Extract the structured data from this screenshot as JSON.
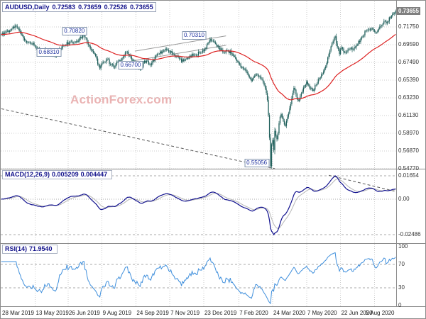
{
  "header": {
    "symbol": "AUDUSD,Daily",
    "open": "0.72583",
    "high": "0.73659",
    "low": "0.72526",
    "close": "0.73655"
  },
  "watermark": "ActionForex.com",
  "main_panel": {
    "axis_labels": [
      "0.71750",
      "0.69590",
      "0.67490",
      "0.65390",
      "0.63230",
      "0.61130",
      "0.58970",
      "0.56870",
      "0.54770"
    ],
    "current_price_label": "0.73655"
  },
  "macd_panel": {
    "label": "MACD(12,26,9)",
    "value_macd": "0.005209",
    "value_signal": "0.004447",
    "axis_labels": [
      "0.01654",
      "0.00",
      "-0.02486"
    ]
  },
  "rsi_panel": {
    "label": "RSI(14)",
    "value": "71.9540",
    "axis_labels": [
      "100",
      "70",
      "30",
      "0"
    ]
  },
  "x_axis": {
    "labels": [
      "28 Mar 2019",
      "13 May 2019",
      "26 Jun 2019",
      "9 Aug 2019",
      "24 Sep 2019",
      "7 Nov 2019",
      "23 Dec 2019",
      "7 Feb 2020",
      "24 Mar 2020",
      "7 May 2020",
      "22 Jun 2020",
      "5 Aug 2020"
    ]
  },
  "colors": {
    "grid": "#cccccc",
    "panel_border": "#8c8c8c",
    "candle": "#1f5f5b",
    "ma_line": "#dd2222",
    "macd_line": "#10108e",
    "macd_signal": "#b6b6b6",
    "rsi_line": "#3f8fdc",
    "label_text": "#14148c",
    "axis_text": "#333333",
    "watermark": "#de8484",
    "annotation_text": "#1c2f9e",
    "annotation_border": "#8193ad",
    "current_price_bg": "#7f7f7f"
  },
  "chart_data": {
    "type": "candlestick",
    "symbol": "AUDUSD",
    "timeframe": "Daily",
    "title": "AUDUSD,Daily",
    "last_ohlc": {
      "open": 0.72583,
      "high": 0.73659,
      "low": 0.72526,
      "close": 0.73655
    },
    "bars_total": 373,
    "price_axis_values": [
      0.7175,
      0.6959,
      0.6749,
      0.6539,
      0.6323,
      0.6113,
      0.5897,
      0.5687,
      0.5477
    ],
    "x_tick_bars": [
      0,
      32,
      63,
      95,
      127,
      159,
      191,
      224,
      256,
      288,
      320,
      352
    ],
    "x_tick_labels": [
      "28 Mar 2019",
      "13 May 2019",
      "26 Jun 2019",
      "9 Aug 2019",
      "24 Sep 2019",
      "7 Nov 2019",
      "23 Dec 2019",
      "7 Feb 2020",
      "24 Mar 2020",
      "7 May 2020",
      "22 Jun 2020",
      "5 Aug 2020"
    ],
    "close_anchors": [
      [
        0,
        0.7085
      ],
      [
        5,
        0.712
      ],
      [
        10,
        0.715
      ],
      [
        13,
        0.719
      ],
      [
        16,
        0.7155
      ],
      [
        19,
        0.708
      ],
      [
        22,
        0.7015
      ],
      [
        27,
        0.699
      ],
      [
        32,
        0.694
      ],
      [
        38,
        0.687
      ],
      [
        44,
        0.6905
      ],
      [
        48,
        0.686
      ],
      [
        52,
        0.6832
      ],
      [
        58,
        0.695
      ],
      [
        65,
        0.7
      ],
      [
        70,
        0.699
      ],
      [
        74,
        0.704
      ],
      [
        78,
        0.7082
      ],
      [
        83,
        0.6945
      ],
      [
        88,
        0.685
      ],
      [
        93,
        0.6677
      ],
      [
        96,
        0.6755
      ],
      [
        100,
        0.679
      ],
      [
        104,
        0.672
      ],
      [
        107,
        0.669
      ],
      [
        110,
        0.676
      ],
      [
        114,
        0.68
      ],
      [
        118,
        0.6875
      ],
      [
        122,
        0.682
      ],
      [
        126,
        0.6745
      ],
      [
        129,
        0.671
      ],
      [
        131,
        0.667
      ],
      [
        134,
        0.6745
      ],
      [
        137,
        0.677
      ],
      [
        141,
        0.6715
      ],
      [
        146,
        0.683
      ],
      [
        152,
        0.688
      ],
      [
        156,
        0.6905
      ],
      [
        162,
        0.685
      ],
      [
        168,
        0.6795
      ],
      [
        172,
        0.677
      ],
      [
        177,
        0.6815
      ],
      [
        183,
        0.684
      ],
      [
        188,
        0.687
      ],
      [
        193,
        0.692
      ],
      [
        197,
        0.7031
      ],
      [
        201,
        0.699
      ],
      [
        205,
        0.6925
      ],
      [
        209,
        0.687
      ],
      [
        213,
        0.689
      ],
      [
        218,
        0.685
      ],
      [
        224,
        0.674
      ],
      [
        228,
        0.668
      ],
      [
        232,
        0.662
      ],
      [
        236,
        0.653
      ],
      [
        240,
        0.661
      ],
      [
        244,
        0.658
      ],
      [
        247,
        0.651
      ],
      [
        249,
        0.644
      ],
      [
        251,
        0.63
      ],
      [
        252,
        0.612
      ],
      [
        253,
        0.585
      ],
      [
        254,
        0.5506
      ],
      [
        255,
        0.577
      ],
      [
        256,
        0.582
      ],
      [
        257,
        0.57
      ],
      [
        258,
        0.593
      ],
      [
        260,
        0.583
      ],
      [
        262,
        0.602
      ],
      [
        264,
        0.613
      ],
      [
        266,
        0.605
      ],
      [
        268,
        0.599
      ],
      [
        270,
        0.61
      ],
      [
        272,
        0.62
      ],
      [
        274,
        0.632
      ],
      [
        276,
        0.6445
      ],
      [
        278,
        0.637
      ],
      [
        280,
        0.629
      ],
      [
        283,
        0.638
      ],
      [
        286,
        0.646
      ],
      [
        288,
        0.652
      ],
      [
        291,
        0.644
      ],
      [
        294,
        0.641
      ],
      [
        297,
        0.648
      ],
      [
        300,
        0.656
      ],
      [
        303,
        0.661
      ],
      [
        306,
        0.67
      ],
      [
        309,
        0.685
      ],
      [
        312,
        0.698
      ],
      [
        315,
        0.7063
      ],
      [
        317,
        0.693
      ],
      [
        319,
        0.685
      ],
      [
        321,
        0.693
      ],
      [
        323,
        0.687
      ],
      [
        326,
        0.688
      ],
      [
        329,
        0.6915
      ],
      [
        332,
        0.69
      ],
      [
        335,
        0.696
      ],
      [
        338,
        0.6995
      ],
      [
        341,
        0.706
      ],
      [
        344,
        0.713
      ],
      [
        347,
        0.7145
      ],
      [
        350,
        0.7157
      ],
      [
        352,
        0.712
      ],
      [
        354,
        0.711
      ],
      [
        356,
        0.715
      ],
      [
        358,
        0.7185
      ],
      [
        360,
        0.7215
      ],
      [
        362,
        0.7245
      ],
      [
        364,
        0.723
      ],
      [
        366,
        0.729
      ],
      [
        368,
        0.731
      ],
      [
        370,
        0.733
      ],
      [
        372,
        0.7365
      ]
    ],
    "price_annotations": [
      {
        "text": "0.70820",
        "price": 0.7082,
        "bar": 69
      },
      {
        "text": "0.68310",
        "price": 0.6831,
        "bar": 45
      },
      {
        "text": "0.70310",
        "price": 0.7031,
        "bar": 182
      },
      {
        "text": "0.66700",
        "price": 0.667,
        "bar": 122
      },
      {
        "text": "0.55056",
        "price": 0.55056,
        "bar": 241
      }
    ],
    "ma": {
      "type": "ema",
      "period": 55
    },
    "macd": {
      "fast": 12,
      "slow": 26,
      "signal": 9,
      "last_macd": 0.005209,
      "last_signal": 0.004447,
      "axis_max": 0.01654,
      "axis_min": -0.02486
    },
    "rsi": {
      "period": 14,
      "last": 71.954,
      "overbought": 70,
      "oversold": 30,
      "range": [
        0,
        100
      ]
    },
    "trendlines": [
      {
        "panel": "main",
        "x1_bar": 0,
        "price1": 0.6195,
        "x2_bar": 258,
        "price2": 0.5478,
        "style": "dashed"
      },
      {
        "panel": "main",
        "x1_bar": 126,
        "price1": 0.6885,
        "x2_bar": 212,
        "price2": 0.7068,
        "style": "solid"
      },
      {
        "panel": "main",
        "x1_bar": 126,
        "price1": 0.6772,
        "x2_bar": 212,
        "price2": 0.6955,
        "style": "solid"
      },
      {
        "panel": "macd",
        "x1_bar": 309,
        "value1": 0.0169,
        "x2_bar": 374,
        "value2": 0.0054,
        "style": "dashed"
      }
    ]
  }
}
